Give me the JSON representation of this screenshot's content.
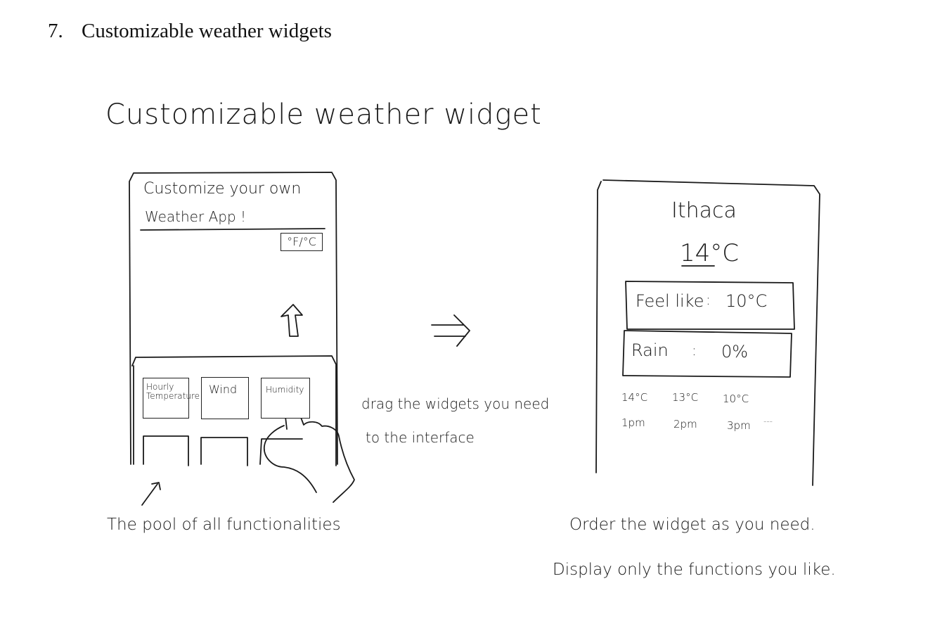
{
  "heading": {
    "number": "7.",
    "text": "Customizable weather widgets"
  },
  "sketch_title": "Customizable weather widget",
  "customize_screen": {
    "title_line1": "Customize your own",
    "title_line2": "Weather App !",
    "unit_toggle": "°F/°C",
    "pool_tiles": [
      {
        "label": "Hourly Temperature"
      },
      {
        "label": "Wind"
      },
      {
        "label": "Humidity"
      }
    ]
  },
  "drag_note": {
    "line1": "drag the widgets you need",
    "line2": "to the interface"
  },
  "pool_caption": "The pool of all functionalities",
  "result_screen": {
    "city": "Ithaca",
    "temperature": "14°C",
    "feel_like": {
      "label": "Feel like",
      "sep": ":",
      "value": "10°C"
    },
    "rain": {
      "label": "Rain",
      "sep": ":",
      "value": "0%"
    },
    "hourly": [
      {
        "temp": "14°C",
        "time": "1pm"
      },
      {
        "temp": "13°C",
        "time": "2pm"
      },
      {
        "temp": "10°C",
        "time": "3pm"
      }
    ],
    "more": "---"
  },
  "order_note": {
    "line1": "Order the widget as you need.",
    "line2": "Display only the functions you like."
  }
}
